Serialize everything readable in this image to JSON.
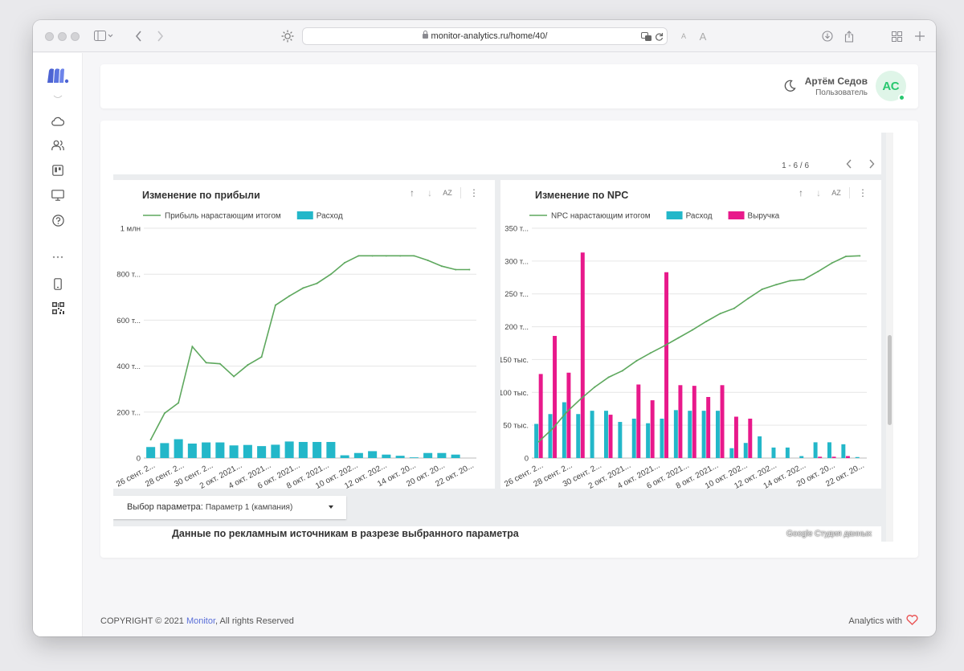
{
  "browser": {
    "url": "monitor-analytics.ru/home/40/",
    "text_size_small": "A",
    "text_size_large": "A"
  },
  "header": {
    "user_name": "Артём Седов",
    "user_role": "Пользователь",
    "avatar_initials": "АС"
  },
  "report": {
    "pager": "1 - 6 / 6",
    "sort_az": "AZ",
    "parameter": {
      "label": "Выбор параметра:",
      "value": "Параметр 1 (кампания)"
    },
    "data_title": "Данные по рекламным источникам в разрезе выбранного параметра",
    "data_studio_label": "Google Студия данных"
  },
  "chart_data": [
    {
      "type": "bar",
      "title": "Изменение по прибыли",
      "series": [
        {
          "name": "Прибыль нарастающим итогом",
          "kind": "line",
          "color": "#5ea85e",
          "values": [
            80000,
            195000,
            240000,
            485000,
            415000,
            410000,
            355000,
            405000,
            440000,
            665000,
            705000,
            740000,
            760000,
            800000,
            850000,
            880000,
            880000,
            880000,
            880000,
            880000,
            860000,
            835000,
            820000,
            820000
          ]
        },
        {
          "name": "Расход",
          "kind": "bar",
          "color": "#23b7c9",
          "values": [
            48000,
            65000,
            82000,
            63000,
            68000,
            68000,
            55000,
            57000,
            52000,
            58000,
            72000,
            70000,
            70000,
            70000,
            12000,
            22000,
            30000,
            15000,
            10000,
            3000,
            22000,
            22000,
            15000,
            0
          ]
        }
      ],
      "x_tick_labels": [
        "26 сент. 2...",
        "28 сент. 2...",
        "30 сент. 2...",
        "2 окт. 2021...",
        "4 окт. 2021...",
        "6 окт. 2021...",
        "8 окт. 2021...",
        "10 окт. 202...",
        "12 окт. 202...",
        "14 окт. 20...",
        "20 окт. 20...",
        "22 окт. 20..."
      ],
      "y_tick_labels": [
        "0",
        "200 т...",
        "400 т...",
        "600 т...",
        "800 т...",
        "1 млн"
      ],
      "ylim": [
        0,
        1000000
      ],
      "grid": true,
      "legend": "top-left"
    },
    {
      "type": "bar",
      "title": "Изменение по NPC",
      "series": [
        {
          "name": "NPC нарастающим итогом",
          "kind": "line",
          "color": "#5ea85e",
          "values": [
            25000,
            45000,
            70000,
            90000,
            108000,
            123000,
            133000,
            148000,
            160000,
            171000,
            183000,
            195000,
            208000,
            220000,
            228000,
            243000,
            257000,
            264000,
            270000,
            272000,
            284000,
            297000,
            307000,
            308000
          ]
        },
        {
          "name": "Расход",
          "kind": "bar",
          "color": "#23b7c9",
          "values": [
            52000,
            67000,
            85000,
            67000,
            72000,
            72000,
            55000,
            60000,
            53000,
            60000,
            73000,
            72000,
            72000,
            72000,
            15000,
            23000,
            33000,
            16000,
            16000,
            3000,
            24000,
            24000,
            21000,
            1500
          ]
        },
        {
          "name": "Выручка",
          "kind": "bar",
          "color": "#e8198b",
          "values": [
            128000,
            186000,
            130000,
            313000,
            0,
            66000,
            0,
            112000,
            88000,
            283000,
            111000,
            110000,
            93000,
            111000,
            63000,
            60000,
            0,
            0,
            0,
            0,
            2000,
            2000,
            3000,
            0
          ]
        }
      ],
      "x_tick_labels": [
        "26 сент. 2...",
        "28 сент. 2...",
        "30 сент. 2...",
        "2 окт. 2021...",
        "4 окт. 2021...",
        "6 окт. 2021...",
        "8 окт. 2021...",
        "10 окт. 202...",
        "12 окт. 202...",
        "14 окт. 202...",
        "20 окт. 20...",
        "22 окт. 20..."
      ],
      "y_tick_labels": [
        "0",
        "50 тыс.",
        "100 тыс.",
        "150 тыс.",
        "200 т...",
        "250 т...",
        "300 т...",
        "350 т..."
      ],
      "ylim": [
        0,
        350000
      ],
      "grid": true,
      "legend": "top-left"
    }
  ],
  "footer": {
    "copyright": "COPYRIGHT © 2021",
    "brand": "Monitor",
    "rights": ", All rights Reserved",
    "analytics": "Analytics with"
  },
  "colors": {
    "accent": "#5a6fd8",
    "online": "#28c76f",
    "heart": "#ea5455"
  }
}
